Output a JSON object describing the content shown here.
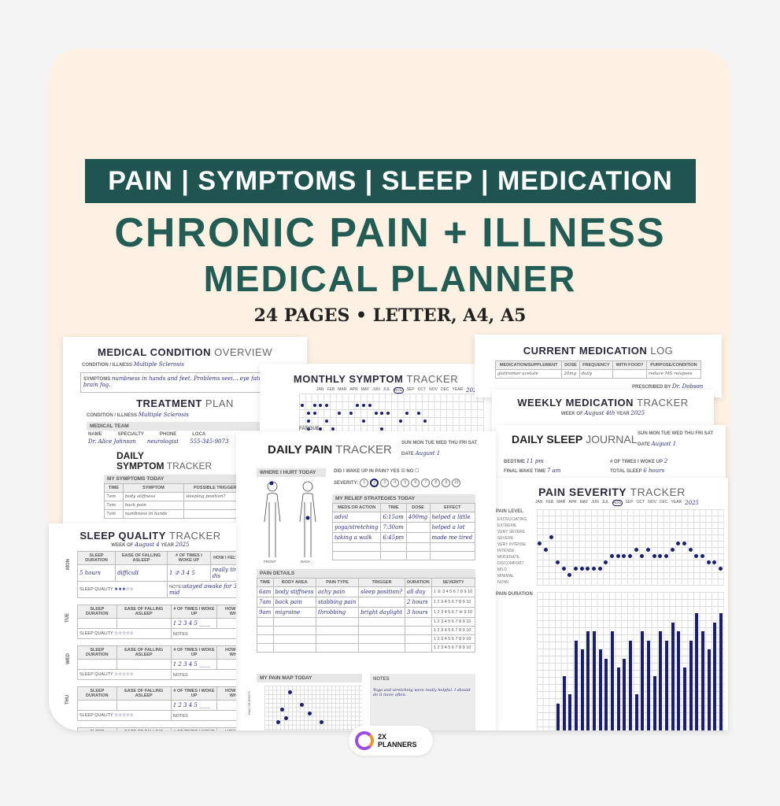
{
  "header": {
    "banner": "PAIN | SYMPTOMS | SLEEP | MEDICATION",
    "title_line1": "CHRONIC PAIN + ILLNESS",
    "title_line2": "MEDICAL PLANNER",
    "subtitle": "24 PAGES • LETTER, A4, A5"
  },
  "colors": {
    "brand_teal": "#1f5450",
    "background": "#fdf1e3",
    "ink": "#1b1f6b"
  },
  "medical_condition": {
    "title_bold": "MEDICAL CONDITION",
    "title_light": "OVERVIEW",
    "condition_label": "CONDITION / ILLNESS",
    "condition": "Multiple Sclerosis",
    "symptoms_label": "SYMPTOMS",
    "symptoms": "numbness in hands and feet. Problems seei... eye fatigue and brain fog."
  },
  "treatment_plan": {
    "title_bold": "TREATMENT",
    "title_light": "PLAN",
    "condition_label": "CONDITION / ILLNESS",
    "condition": "Multiple Sclerosis",
    "team_label": "MEDICAL TEAM",
    "cols": [
      "NAME",
      "SPECIALTY",
      "PHONE",
      "LOCA"
    ],
    "row": [
      "Dr. Alice Johnson",
      "neurologist",
      "555-345-9073",
      "43"
    ]
  },
  "daily_symptom": {
    "title_line1": "DAILY",
    "title_bold": "SYMPTOM",
    "title_light": "TRACKER",
    "section": "MY SYMPTOMS TODAY",
    "cols": [
      "TIME",
      "SYMPTOM",
      "POSSIBLE TRIGGERS",
      "DU"
    ],
    "rows": [
      [
        "7am",
        "body stiffness",
        "sleeping position?",
        "al"
      ],
      [
        "7am",
        "back pain",
        "",
        "16"
      ],
      [
        "7am",
        "numbness in hands",
        "",
        "7"
      ]
    ]
  },
  "monthly_symptom": {
    "title_bold": "MONTHLY SYMPTOM",
    "title_light": "TRACKER",
    "months": [
      "JAN",
      "FEB",
      "MAR",
      "APR",
      "MAY",
      "JUN",
      "JUL",
      "AUG",
      "SEP",
      "OCT",
      "NOV",
      "DEC"
    ],
    "selected_month": "AUG",
    "year_label": "YEAR",
    "year": "2025",
    "row_label": "Fatigue",
    "rows": [
      [
        1,
        3,
        4,
        5,
        10,
        11,
        12
      ],
      [
        2,
        3,
        7,
        9,
        13,
        14,
        15,
        18,
        20
      ],
      [
        2,
        5,
        11,
        17,
        21
      ],
      [
        2,
        4,
        6,
        14
      ],
      [
        2,
        4,
        7,
        9,
        12,
        18
      ]
    ]
  },
  "current_medication": {
    "title_bold": "CURRENT MEDICATION",
    "title_light": "LOG",
    "cols": [
      "MEDICATION/SUPPLEMENT",
      "DOSE",
      "FREQUENCY",
      "WITH FOOD?",
      "PURPOSE/CONDITION"
    ],
    "row": [
      "glatiramer acetate",
      "20mg",
      "daily",
      "",
      "reduce MS relapses"
    ],
    "prescribed_label": "PRESCRIBED BY",
    "prescribed": "Dr. Dobson"
  },
  "weekly_medication": {
    "title_bold": "WEEKLY MEDICATION",
    "title_light": "TRACKER",
    "week_label": "WEEK OF",
    "week": "August 4th",
    "year_label": "YEAR",
    "year": "2025"
  },
  "daily_sleep": {
    "title_bold": "DAILY SLEEP",
    "title_light": "JOURNAL",
    "days": "SUN MON TUE WED THU FRI SAT",
    "date_label": "DATE",
    "date": "August 1",
    "bedtime_label": "BEDTIME",
    "bedtime": "11 pm",
    "wake_label": "FINAL WAKE TIME",
    "wake": "7 am",
    "woke_label": "# OF TIMES I WOKE UP",
    "woke": "2",
    "total_label": "TOTAL SLEEP",
    "total": "6 hours"
  },
  "daily_pain": {
    "title_bold": "DAILY PAIN",
    "title_light": "TRACKER",
    "days": "SUN MON TUE WED THU FRI SAT",
    "date_label": "DATE",
    "date": "August 1",
    "where_label": "WHERE I HURT TODAY",
    "front": "FRONT",
    "back": "BACK",
    "woke_q": "DID I WAKE UP IN PAIN? YES",
    "woke_yes": true,
    "no_label": "NO",
    "severity_label": "SEVERITY:",
    "severity": 2,
    "relief_label": "MY RELIEF STRATEGIES TODAY",
    "relief_cols": [
      "MEDS OR ACTION",
      "TIME",
      "DOSE",
      "EFFECT"
    ],
    "relief_rows": [
      [
        "advil",
        "6:15am",
        "400mg",
        "helped a little"
      ],
      [
        "yoga/stretching",
        "7:30am",
        "",
        "helped a lot"
      ],
      [
        "taking a walk",
        "6:45pm",
        "",
        "made me tired"
      ],
      [
        "",
        "",
        "",
        ""
      ],
      [
        "",
        "",
        "",
        ""
      ]
    ],
    "details_label": "PAIN DETAILS",
    "details_cols": [
      "TIME",
      "BODY AREA",
      "PAIN TYPE",
      "TRIGGER",
      "DURATION",
      "SEVERITY"
    ],
    "details_rows": [
      [
        "6am",
        "body stiffness",
        "achy pain",
        "sleep position?",
        "all day",
        "1 ② 3 4 5 6 7 8 9 10"
      ],
      [
        "7am",
        "back pain",
        "stabbing pain",
        "",
        "2 hours",
        "1 2 3 4 5 6 7 8 9 10"
      ],
      [
        "9am",
        "migraine",
        "throbbing",
        "bright daylight",
        "3 hours",
        "1 2 3 4 5 6 7 ⑧ 9 10"
      ],
      [
        "",
        "",
        "",
        "",
        "",
        "1 2 3 4 5 6 7 8 9 10"
      ],
      [
        "",
        "",
        "",
        "",
        "",
        "1 2 3 4 5 6 7 8 9 10"
      ],
      [
        "",
        "",
        "",
        "",
        "",
        "1 2 3 4 5 6 7 8 9 10"
      ],
      [
        "",
        "",
        "",
        "",
        "",
        "1 2 3 4 5 6 7 8 9 10"
      ]
    ],
    "map_label": "MY PAIN MAP TODAY",
    "map_axis": "PAIN SEVERITY",
    "map_points": [
      [
        3,
        2
      ],
      [
        4,
        5
      ],
      [
        5,
        3
      ],
      [
        6,
        9
      ],
      [
        9,
        6
      ],
      [
        11,
        4
      ],
      [
        14,
        2
      ]
    ],
    "notes_label": "NOTES",
    "notes": "Yoga and stretching were really helpful. I should do it more often."
  },
  "sleep_quality": {
    "title_bold": "SLEEP QUALITY",
    "title_light": "TRACKER",
    "week_label": "WEEK OF",
    "week": "August 4",
    "year_label": "YEAR",
    "year": "2025",
    "cols": [
      "SLEEP DURATION",
      "EASE OF FALLING ASLEEP",
      "# OF TIMES I WOKE UP",
      "HOW I FELT WHEN I"
    ],
    "quality_label": "SLEEP QUALITY",
    "notes_label": "NOTES",
    "woke_scale": "1 2 3 4 5 ____",
    "days": [
      {
        "day": "MON",
        "duration": "5 hours",
        "ease": "difficult",
        "woke": "1 ② 3 4 5",
        "felt": "really tired and dis",
        "stars": 3,
        "notes": "stayed awake for 3 hrs in mid"
      },
      {
        "day": "TUE",
        "stars": 0
      },
      {
        "day": "WED",
        "stars": 0
      },
      {
        "day": "THU",
        "stars": 0
      },
      {
        "day": "FRI",
        "stars": 0
      }
    ]
  },
  "pain_severity": {
    "title_bold": "PAIN SEVERITY",
    "title_light": "TRACKER",
    "months": [
      "JAN",
      "FEB",
      "MAR",
      "APR",
      "MAY",
      "JUN",
      "JUL",
      "AUG",
      "SEP",
      "OCT",
      "NOV",
      "DEC"
    ],
    "selected_month": "AUG",
    "year_label": "YEAR",
    "year": "2025",
    "level_header": "PAIN LEVEL",
    "duration_header": "PAIN DURATION",
    "levels": [
      "EXCRUCIATING",
      "EXTREME",
      "VERY SEVERE",
      "SEVERE",
      "VERY INTENSE",
      "INTENSE",
      "MODERATE",
      "DISCOMFORT",
      "MILD",
      "MINIMAL",
      "NONE"
    ],
    "daily_level": [
      "VERY INTENSE",
      "INTENSE",
      "SEVERE",
      "DISCOMFORT",
      "MILD",
      "MINIMAL",
      "MILD",
      "MILD",
      "MILD",
      "MILD",
      "MILD",
      "DISCOMFORT",
      "MODERATE",
      "MODERATE",
      "MODERATE",
      "MODERATE",
      "INTENSE",
      "MODERATE",
      "INTENSE",
      "MODERATE",
      "MODERATE",
      "MODERATE",
      "INTENSE",
      "VERY INTENSE",
      "VERY INTENSE",
      "INTENSE",
      "MODERATE",
      "MODERATE",
      "DISCOMFORT",
      "DISCOMFORT",
      "MILD"
    ],
    "daily_duration_hours": [
      0,
      0,
      0,
      3,
      6,
      4,
      10,
      9,
      11,
      11,
      9,
      8,
      11,
      7,
      8,
      10,
      4,
      11,
      10,
      6,
      11,
      10,
      12,
      11,
      7,
      10,
      13,
      11,
      9,
      12,
      13
    ]
  },
  "brand": {
    "line1": "2X",
    "line2": "PLANNERS"
  }
}
